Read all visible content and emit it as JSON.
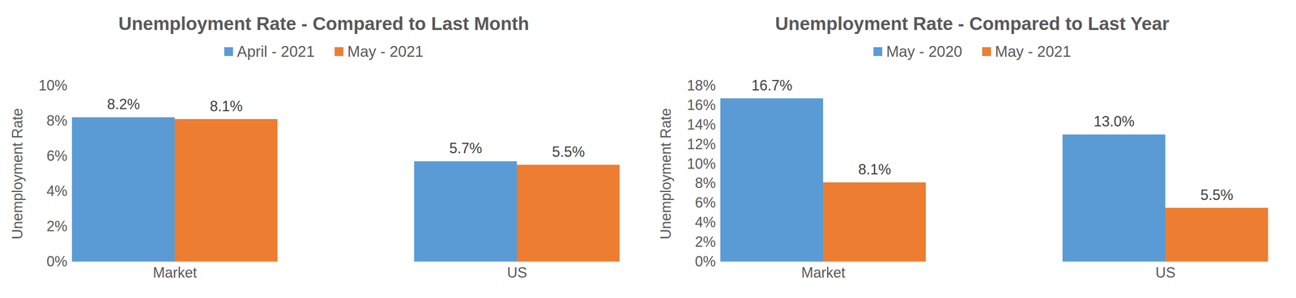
{
  "chart_data": [
    {
      "type": "bar",
      "title": "Unemployment Rate - Compared to Last Month",
      "y_label": "Unemployment Rate",
      "categories": [
        "Market",
        "US"
      ],
      "series": [
        {
          "name": "April - 2021",
          "color": "#5b9bd5",
          "values": [
            8.2,
            5.7
          ],
          "value_labels": [
            "8.2%",
            "5.7%"
          ]
        },
        {
          "name": "May - 2021",
          "color": "#ed7d31",
          "values": [
            8.1,
            5.5
          ],
          "value_labels": [
            "8.1%",
            "5.5%"
          ]
        }
      ],
      "ylim": [
        0,
        10
      ],
      "yticks": [
        {
          "value": 0,
          "label": "0%"
        },
        {
          "value": 2,
          "label": "2%"
        },
        {
          "value": 4,
          "label": "4%"
        },
        {
          "value": 6,
          "label": "6%"
        },
        {
          "value": 8,
          "label": "8%"
        },
        {
          "value": 10,
          "label": "10%"
        }
      ],
      "grid": false,
      "legend": "top",
      "data_labels": true
    },
    {
      "type": "bar",
      "title": "Unemployment Rate - Compared to Last Year",
      "y_label": "Unemployment Rate",
      "categories": [
        "Market",
        "US"
      ],
      "series": [
        {
          "name": "May - 2020",
          "color": "#5b9bd5",
          "values": [
            16.7,
            13.0
          ],
          "value_labels": [
            "16.7%",
            "13.0%"
          ]
        },
        {
          "name": "May - 2021",
          "color": "#ed7d31",
          "values": [
            8.1,
            5.5
          ],
          "value_labels": [
            "8.1%",
            "5.5%"
          ]
        }
      ],
      "ylim": [
        0,
        18
      ],
      "yticks": [
        {
          "value": 0,
          "label": "0%"
        },
        {
          "value": 2,
          "label": "2%"
        },
        {
          "value": 4,
          "label": "4%"
        },
        {
          "value": 6,
          "label": "6%"
        },
        {
          "value": 8,
          "label": "8%"
        },
        {
          "value": 10,
          "label": "10%"
        },
        {
          "value": 12,
          "label": "12%"
        },
        {
          "value": 14,
          "label": "14%"
        },
        {
          "value": 16,
          "label": "16%"
        },
        {
          "value": 18,
          "label": "18%"
        }
      ],
      "grid": false,
      "legend": "top",
      "data_labels": true
    }
  ]
}
